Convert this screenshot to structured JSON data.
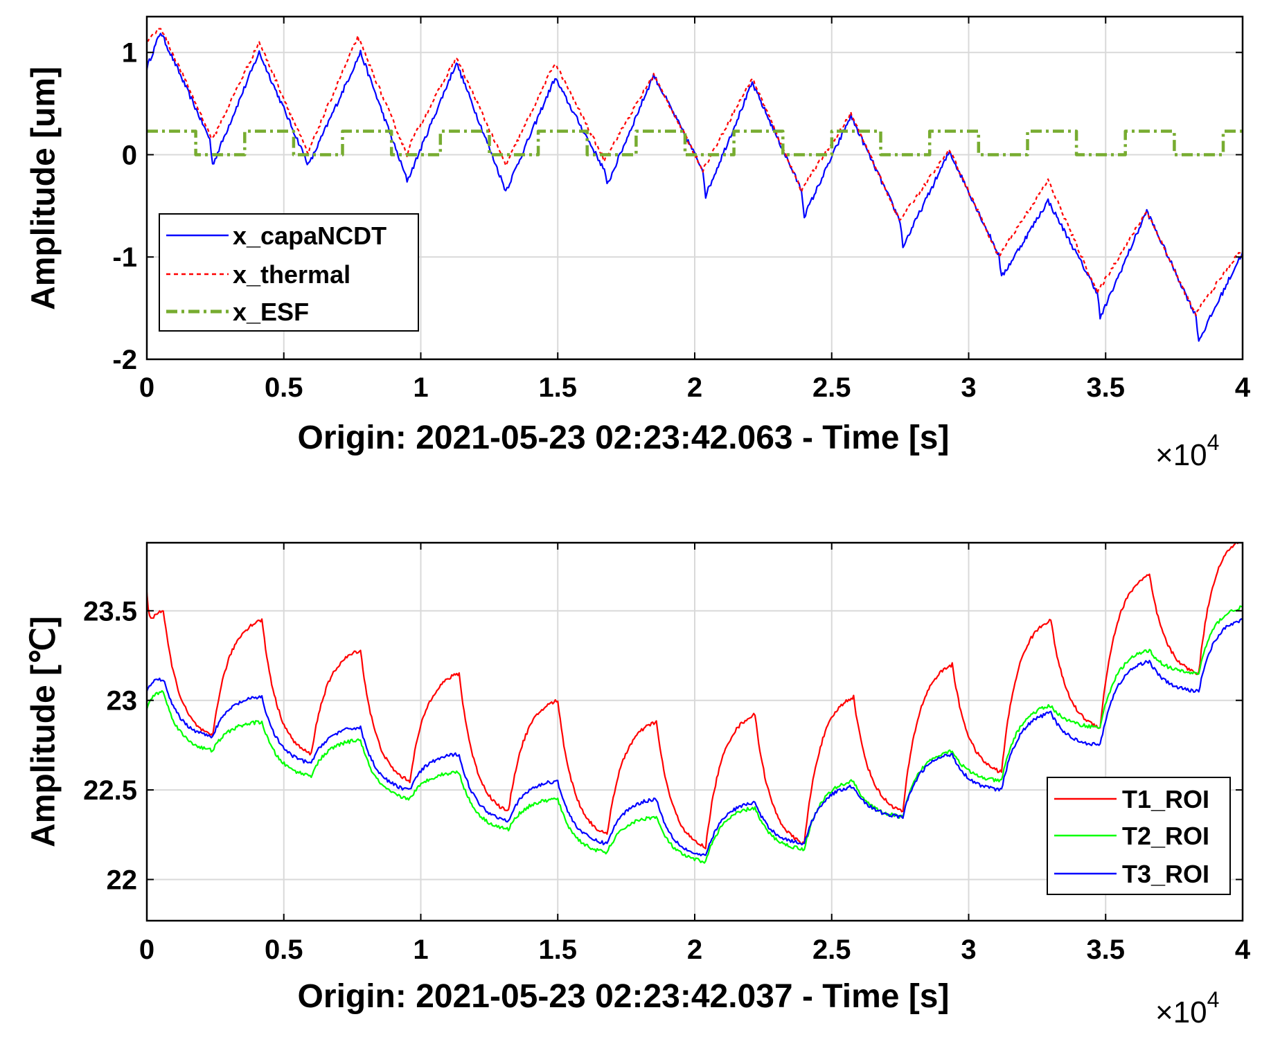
{
  "chart_data": [
    {
      "type": "line",
      "xlabel": "Origin: 2021-05-23 02:23:42.063 - Time  [s]",
      "ylabel": "Amplitude  [um]",
      "x_multiplier": "×10",
      "x_multiplier_exp": "4",
      "xlim": [
        0,
        4
      ],
      "ylim": [
        -2,
        1.35
      ],
      "xticks": [
        0,
        0.5,
        1,
        1.5,
        2,
        2.5,
        3,
        3.5,
        4
      ],
      "xtick_labels": [
        "0",
        "0.5",
        "1",
        "1.5",
        "2",
        "2.5",
        "3",
        "3.5",
        "4"
      ],
      "yticks": [
        -2,
        -1,
        0,
        1
      ],
      "ytick_labels": [
        "-2",
        "-1",
        "0",
        "1"
      ],
      "grid": true,
      "legend_position": "lower-left",
      "series": [
        {
          "name": "x_capaNCDT",
          "color": "#0000ff",
          "style": "solid",
          "x": [
            0,
            0.05,
            0.23,
            0.24,
            0.41,
            0.59,
            0.6,
            0.78,
            0.95,
            0.96,
            1.13,
            1.31,
            1.32,
            1.49,
            1.67,
            1.68,
            1.85,
            2.03,
            2.04,
            2.21,
            2.39,
            2.4,
            2.57,
            2.75,
            2.76,
            2.93,
            3.11,
            3.12,
            3.29,
            3.47,
            3.48,
            3.65,
            3.83,
            3.84,
            4
          ],
          "y": [
            0.85,
            1.2,
            0.15,
            -0.1,
            1.0,
            -0.1,
            -0.05,
            1.0,
            -0.25,
            -0.2,
            0.9,
            -0.35,
            -0.3,
            0.75,
            -0.15,
            -0.3,
            0.78,
            -0.15,
            -0.4,
            0.7,
            -0.35,
            -0.6,
            0.38,
            -0.65,
            -0.9,
            0.03,
            -0.98,
            -1.2,
            -0.45,
            -1.35,
            -1.6,
            -0.55,
            -1.58,
            -1.82,
            -0.95
          ]
        },
        {
          "name": "x_thermal",
          "color": "#ff0000",
          "style": "dashed",
          "x": [
            0,
            0.05,
            0.23,
            0.24,
            0.41,
            0.59,
            0.6,
            0.77,
            0.95,
            0.96,
            1.13,
            1.31,
            1.32,
            1.49,
            1.67,
            1.68,
            1.85,
            2.03,
            2.04,
            2.21,
            2.39,
            2.4,
            2.57,
            2.75,
            2.76,
            2.93,
            3.11,
            3.12,
            3.29,
            3.47,
            3.48,
            3.65,
            3.83,
            3.84,
            3.99,
            4
          ],
          "y": [
            1.1,
            1.25,
            0.2,
            0.15,
            1.1,
            0.0,
            0.1,
            1.15,
            0.0,
            0.1,
            0.95,
            -0.1,
            -0.05,
            0.9,
            -0.05,
            0.0,
            0.78,
            -0.15,
            -0.1,
            0.75,
            -0.35,
            -0.3,
            0.4,
            -0.65,
            -0.6,
            0.05,
            -1.0,
            -0.95,
            -0.25,
            -1.35,
            -1.3,
            -0.55,
            -1.58,
            -1.5,
            -0.95,
            -1.0
          ]
        },
        {
          "name": "x_ESF",
          "color": "#77ac30",
          "style": "dashdot",
          "period": 0.3572,
          "high": 0.23,
          "low": 0.0
        }
      ]
    },
    {
      "type": "line",
      "xlabel": "Origin: 2021-05-23 02:23:42.037 - Time  [s]",
      "ylabel": "Amplitude  [℃]",
      "x_multiplier": "×10",
      "x_multiplier_exp": "4",
      "xlim": [
        0,
        4
      ],
      "ylim": [
        21.77,
        23.88
      ],
      "xticks": [
        0,
        0.5,
        1,
        1.5,
        2,
        2.5,
        3,
        3.5,
        4
      ],
      "xtick_labels": [
        "0",
        "0.5",
        "1",
        "1.5",
        "2",
        "2.5",
        "3",
        "3.5",
        "4"
      ],
      "yticks": [
        22,
        22.5,
        23,
        23.5
      ],
      "ytick_labels": [
        "22",
        "22.5",
        "23",
        "23.5"
      ],
      "grid": true,
      "legend_position": "lower-right",
      "series": [
        {
          "name": "T1_ROI",
          "color": "#ff0000",
          "x": [
            0,
            0.02,
            0.06,
            0.24,
            0.42,
            0.6,
            0.78,
            0.96,
            1.14,
            1.32,
            1.5,
            1.68,
            1.86,
            2.04,
            2.22,
            2.4,
            2.58,
            2.76,
            2.94,
            3.12,
            3.3,
            3.48,
            3.66,
            3.84,
            4
          ],
          "y": [
            23.6,
            23.45,
            23.5,
            22.8,
            23.45,
            22.7,
            23.28,
            22.55,
            23.15,
            22.38,
            23.0,
            22.25,
            22.88,
            22.18,
            22.92,
            22.2,
            23.02,
            22.38,
            23.2,
            22.6,
            23.45,
            22.85,
            23.7,
            23.15,
            23.9
          ]
        },
        {
          "name": "T2_ROI",
          "color": "#00ff00",
          "x": [
            0,
            0.06,
            0.24,
            0.42,
            0.6,
            0.78,
            0.96,
            1.14,
            1.32,
            1.5,
            1.68,
            1.86,
            2.04,
            2.22,
            2.4,
            2.58,
            2.76,
            2.94,
            3.12,
            3.3,
            3.48,
            3.66,
            3.84,
            4
          ],
          "y": [
            22.95,
            23.05,
            22.72,
            22.88,
            22.58,
            22.78,
            22.45,
            22.6,
            22.28,
            22.45,
            22.15,
            22.35,
            22.1,
            22.4,
            22.17,
            22.55,
            22.35,
            22.72,
            22.55,
            22.97,
            22.85,
            23.28,
            23.15,
            23.52
          ]
        },
        {
          "name": "T3_ROI",
          "color": "#0000ff",
          "x": [
            0,
            0.06,
            0.24,
            0.42,
            0.6,
            0.78,
            0.96,
            1.14,
            1.32,
            1.5,
            1.68,
            1.86,
            2.04,
            2.22,
            2.4,
            2.58,
            2.76,
            2.94,
            3.12,
            3.3,
            3.48,
            3.66,
            3.84,
            4
          ],
          "y": [
            23.05,
            23.12,
            22.8,
            23.02,
            22.65,
            22.85,
            22.5,
            22.7,
            22.33,
            22.55,
            22.2,
            22.45,
            22.13,
            22.43,
            22.2,
            22.52,
            22.35,
            22.7,
            22.5,
            22.93,
            22.75,
            23.22,
            23.05,
            23.45
          ]
        }
      ]
    }
  ]
}
